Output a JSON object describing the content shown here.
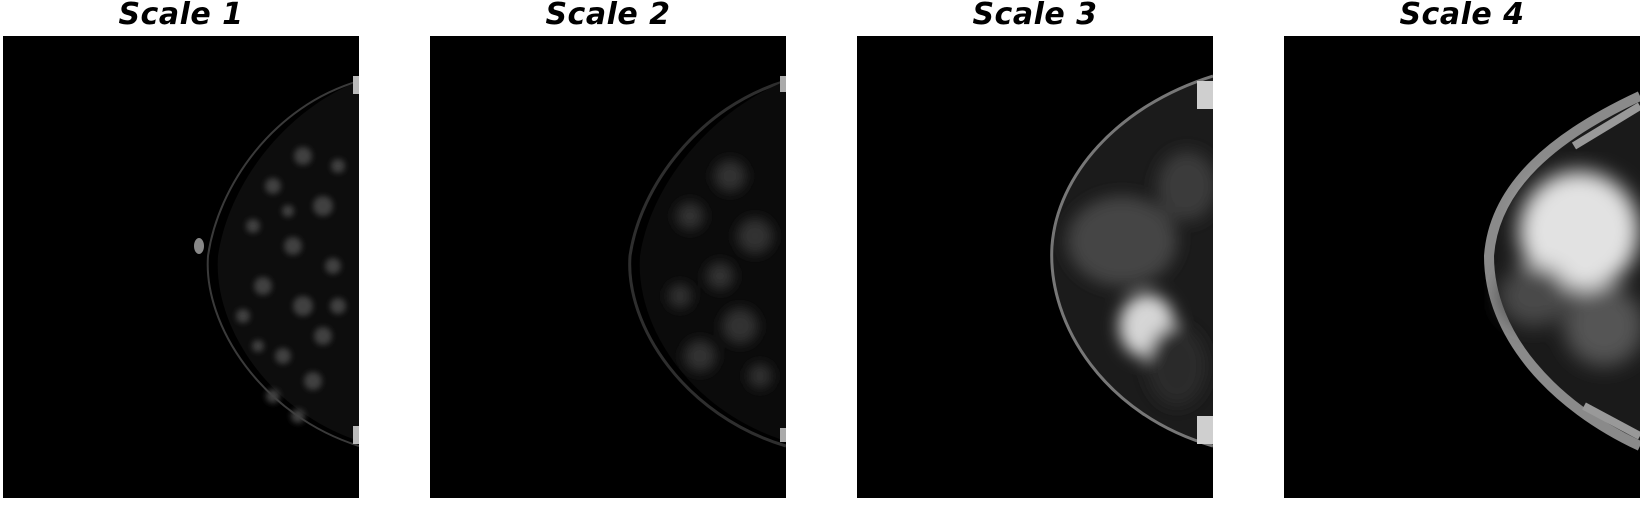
{
  "panels": [
    {
      "title": "Scale 1",
      "image": "breast-mammogram-scale-1"
    },
    {
      "title": "Scale 2",
      "image": "breast-mammogram-scale-2"
    },
    {
      "title": "Scale 3",
      "image": "breast-mammogram-scale-3"
    },
    {
      "title": "Scale 4",
      "image": "breast-mammogram-scale-4"
    }
  ],
  "colors": {
    "background": "#ffffff",
    "image_background": "#000000"
  }
}
